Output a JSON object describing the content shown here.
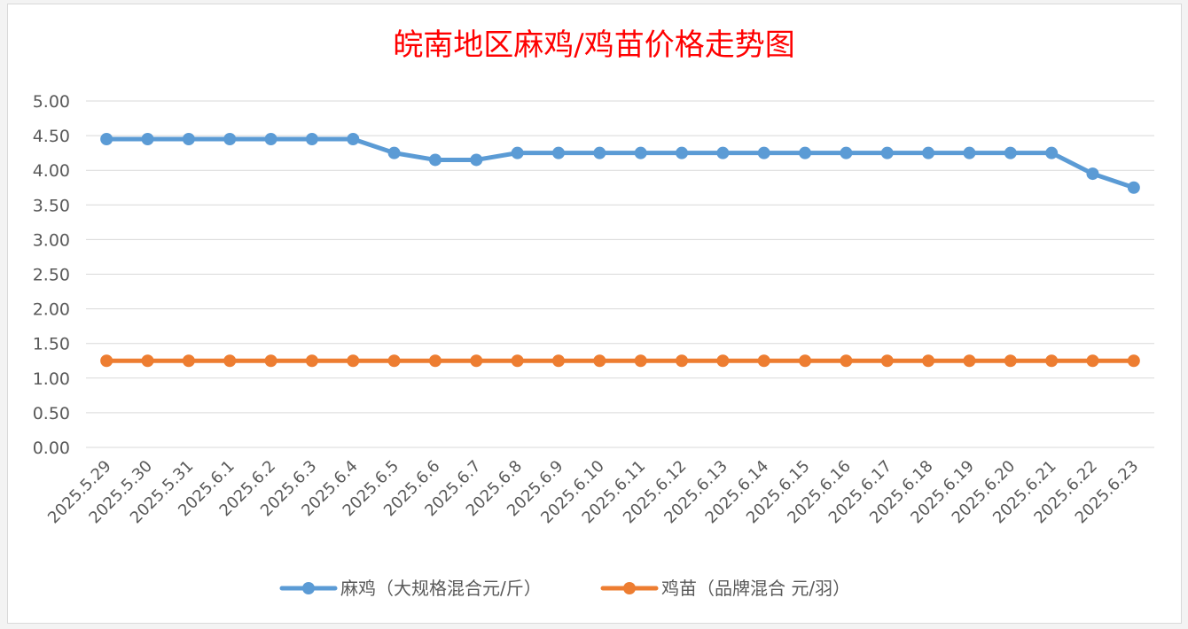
{
  "chart_data": {
    "type": "line",
    "title": "皖南地区麻鸡/鸡苗价格走势图",
    "xlabel": "",
    "ylabel": "",
    "categories": [
      "2025.5.29",
      "2025.5.30",
      "2025.5.31",
      "2025.6.1",
      "2025.6.2",
      "2025.6.3",
      "2025.6.4",
      "2025.6.5",
      "2025.6.6",
      "2025.6.7",
      "2025.6.8",
      "2025.6.9",
      "2025.6.10",
      "2025.6.11",
      "2025.6.12",
      "2025.6.13",
      "2025.6.14",
      "2025.6.15",
      "2025.6.16",
      "2025.6.17",
      "2025.6.18",
      "2025.6.19",
      "2025.6.20",
      "2025.6.21",
      "2025.6.22",
      "2025.6.23"
    ],
    "series": [
      {
        "name": "麻鸡（大规格混合元/斤）",
        "color": "#5b9bd5",
        "values": [
          4.45,
          4.45,
          4.45,
          4.45,
          4.45,
          4.45,
          4.45,
          4.25,
          4.15,
          4.15,
          4.25,
          4.25,
          4.25,
          4.25,
          4.25,
          4.25,
          4.25,
          4.25,
          4.25,
          4.25,
          4.25,
          4.25,
          4.25,
          4.25,
          3.95,
          3.75
        ]
      },
      {
        "name": "鸡苗（品牌混合 元/羽）",
        "color": "#ed7d31",
        "values": [
          1.25,
          1.25,
          1.25,
          1.25,
          1.25,
          1.25,
          1.25,
          1.25,
          1.25,
          1.25,
          1.25,
          1.25,
          1.25,
          1.25,
          1.25,
          1.25,
          1.25,
          1.25,
          1.25,
          1.25,
          1.25,
          1.25,
          1.25,
          1.25,
          1.25,
          1.25
        ]
      }
    ],
    "ylim": [
      0,
      5
    ],
    "yticks": [
      "0.00",
      "0.50",
      "1.00",
      "1.50",
      "2.00",
      "2.50",
      "3.00",
      "3.50",
      "4.00",
      "4.50",
      "5.00"
    ],
    "grid": true,
    "legend": "bottom"
  }
}
